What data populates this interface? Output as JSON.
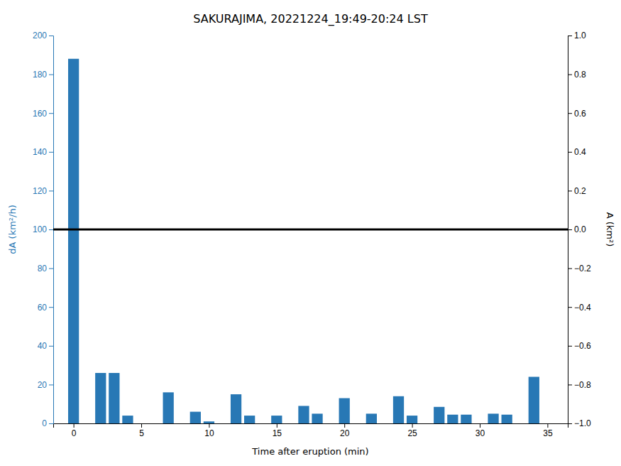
{
  "chart_data": {
    "type": "bar",
    "title": "SAKURAJIMA, 20221224_19:49-20:24 LST",
    "x_label": "Time after eruption (min)",
    "y_label": "dA (km²/h)",
    "y2_label": "A (km²)",
    "x": [
      0,
      2,
      3,
      4,
      7,
      9,
      10,
      12,
      13,
      15,
      17,
      18,
      20,
      22,
      24,
      25,
      27,
      28,
      29,
      31,
      32,
      34
    ],
    "values": [
      188,
      26,
      26,
      4,
      16,
      6,
      1,
      15,
      4,
      4,
      9,
      5,
      13,
      5,
      14,
      4,
      8.5,
      4.5,
      4.5,
      5,
      4.5,
      24
    ],
    "color": "#2878b5",
    "hline": {
      "y": 100,
      "color": "black"
    },
    "xlim": [
      -1.5,
      36.5
    ],
    "xticks": [
      0,
      5,
      10,
      15,
      20,
      25,
      30,
      35
    ],
    "ylim": [
      0,
      200
    ],
    "yticks": [
      0,
      20,
      40,
      60,
      80,
      100,
      120,
      140,
      160,
      180,
      200
    ],
    "y2lim": [
      -1,
      1
    ],
    "y2ticks": [
      {
        "value": -1,
        "label": "−1.0"
      },
      {
        "value": -0.8,
        "label": "−0.8"
      },
      {
        "value": -0.6,
        "label": "−0.6"
      },
      {
        "value": -0.4,
        "label": "−0.4"
      },
      {
        "value": -0.2,
        "label": "−0.2"
      },
      {
        "value": 0,
        "label": "0.0"
      },
      {
        "value": 0.2,
        "label": "0.2"
      },
      {
        "value": 0.4,
        "label": "0.4"
      },
      {
        "value": 0.6,
        "label": "0.6"
      },
      {
        "value": 0.8,
        "label": "0.8"
      },
      {
        "value": 1,
        "label": "1.0"
      }
    ]
  }
}
